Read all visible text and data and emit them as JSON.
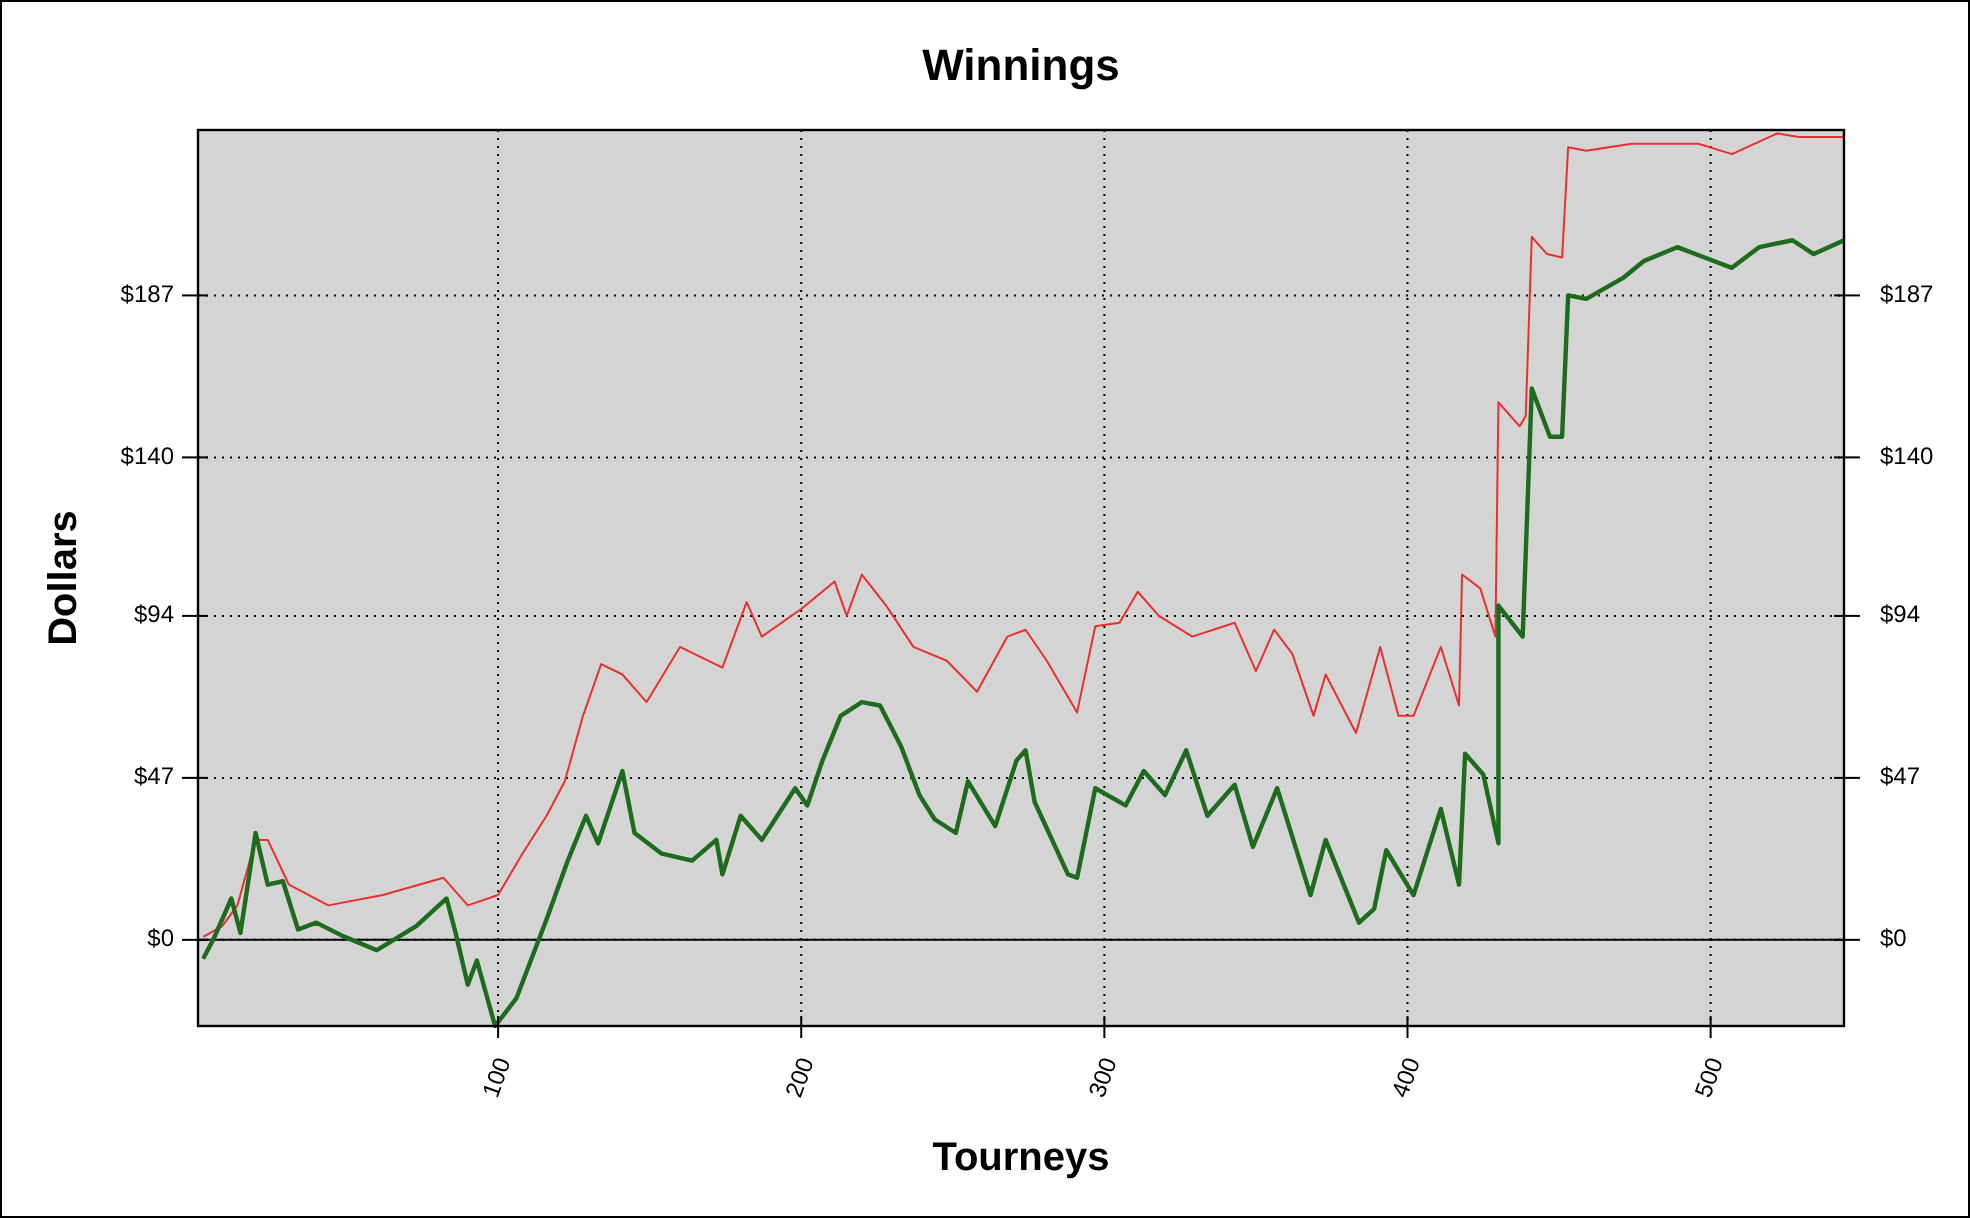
{
  "chart_data": {
    "type": "line",
    "title": "Winnings",
    "xlabel": "Tourneys",
    "ylabel": "Dollars",
    "xlim": [
      1,
      544
    ],
    "xticks": [
      100,
      200,
      300,
      400,
      500
    ],
    "ylim": [
      -25,
      235
    ],
    "yticks": [
      {
        "value": 0,
        "label": "$0"
      },
      {
        "value": 47,
        "label": "$47"
      },
      {
        "value": 94,
        "label": "$94"
      },
      {
        "value": 140,
        "label": "$140"
      },
      {
        "value": 187,
        "label": "$187"
      }
    ],
    "y2lim": [
      -25,
      235
    ],
    "y2ticks": [
      {
        "value": 0,
        "label": "$0"
      },
      {
        "value": 47,
        "label": "$47"
      },
      {
        "value": 94,
        "label": "$94"
      },
      {
        "value": 140,
        "label": "$140"
      },
      {
        "value": 187,
        "label": "$187"
      }
    ],
    "grid": true,
    "marker": "none",
    "line_style": "solid",
    "ref_lines": [
      {
        "axis": "y",
        "value": 0,
        "color": "#000000",
        "line_style": "solid"
      }
    ],
    "series": [
      {
        "color": "#e8312f",
        "x": [
          3,
          9,
          14,
          20,
          24,
          31,
          44,
          62,
          82,
          90,
          100,
          108,
          116,
          122,
          128,
          134,
          141,
          149,
          160,
          174,
          182,
          187,
          200,
          211,
          215,
          220,
          228,
          237,
          248,
          258,
          268,
          274,
          281,
          291,
          297,
          305,
          311,
          318,
          329,
          343,
          350,
          356,
          362,
          369,
          373,
          383,
          391,
          397,
          402,
          411,
          417,
          418,
          424,
          429,
          430,
          437,
          439,
          441,
          446,
          451,
          453,
          459,
          474,
          496,
          507,
          522,
          529,
          544
        ],
        "values": [
          1,
          4,
          10,
          29,
          29,
          16,
          10,
          13,
          18,
          10,
          13,
          25,
          36,
          46,
          65,
          80,
          77,
          69,
          85,
          79,
          98,
          88,
          96,
          104,
          94,
          106,
          97,
          85,
          81,
          72,
          88,
          90,
          81,
          66,
          91,
          92,
          101,
          94,
          88,
          92,
          78,
          90,
          83,
          65,
          77,
          60,
          85,
          65,
          65,
          85,
          68,
          106,
          102,
          88,
          156,
          149,
          152,
          204,
          199,
          198,
          230,
          229,
          231,
          231,
          228,
          234,
          233,
          233
        ]
      },
      {
        "color": "#1e6b1e",
        "x": [
          3,
          6,
          12,
          15,
          20,
          24,
          29,
          34,
          40,
          49,
          60,
          73,
          83,
          86,
          90,
          93,
          99,
          106,
          116,
          123,
          129,
          133,
          141,
          145,
          154,
          164,
          172,
          174,
          180,
          187,
          198,
          202,
          207,
          213,
          220,
          226,
          233,
          239,
          244,
          251,
          255,
          264,
          271,
          274,
          277,
          288,
          291,
          297,
          307,
          313,
          320,
          327,
          334,
          343,
          349,
          357,
          368,
          373,
          384,
          389,
          393,
          402,
          411,
          417,
          419,
          425,
          430,
          430,
          438,
          441,
          447,
          451,
          453,
          459,
          471,
          478,
          489,
          498,
          507,
          516,
          527,
          534,
          544
        ],
        "values": [
          -5,
          0,
          12,
          2,
          31,
          16,
          17,
          3,
          5,
          1,
          -3,
          4,
          12,
          2,
          -13,
          -6,
          -25,
          -17,
          6,
          23,
          36,
          28,
          49,
          31,
          25,
          23,
          29,
          19,
          36,
          29,
          44,
          39,
          52,
          65,
          69,
          68,
          56,
          42,
          35,
          31,
          46,
          33,
          52,
          55,
          40,
          19,
          18,
          44,
          39,
          49,
          42,
          55,
          36,
          45,
          27,
          44,
          13,
          29,
          5,
          9,
          26,
          13,
          38,
          16,
          54,
          48,
          28,
          97,
          88,
          160,
          146,
          146,
          187,
          186,
          192,
          197,
          201,
          198,
          195,
          201,
          203,
          199,
          203
        ]
      }
    ]
  }
}
